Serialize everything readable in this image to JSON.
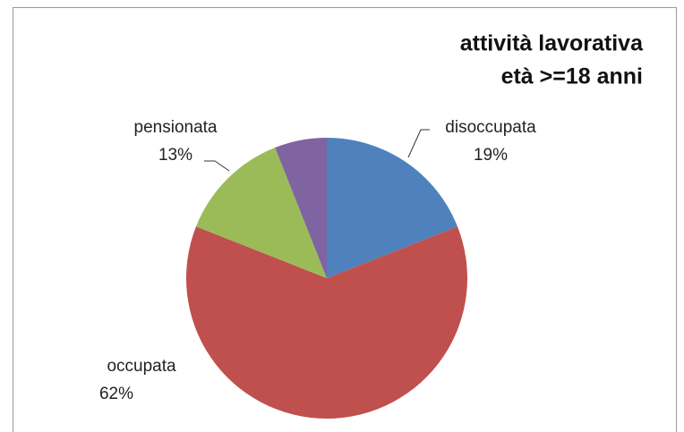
{
  "chart_data": {
    "type": "pie",
    "title": [
      "attività lavorativa",
      "età >=18 anni"
    ],
    "categories": [
      "disoccupata",
      "occupata",
      "pensionata",
      null
    ],
    "values": [
      19,
      62,
      13,
      6
    ],
    "value_labels": [
      "19%",
      "62%",
      "13%",
      null
    ],
    "colors": [
      "#4f81bd",
      "#c0504d",
      "#9bbb59",
      "#8064a2"
    ]
  }
}
